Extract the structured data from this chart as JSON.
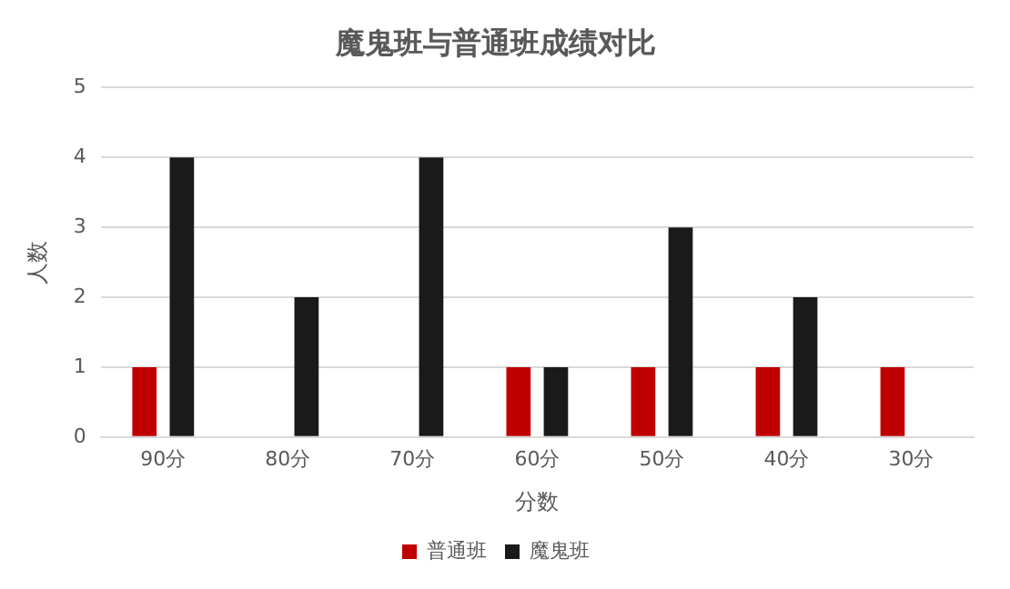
{
  "chart_data": {
    "type": "bar",
    "title": "魔鬼班与普通班成绩对比",
    "xlabel": "分数",
    "ylabel": "人数",
    "categories": [
      "90分",
      "80分",
      "70分",
      "60分",
      "50分",
      "40分",
      "30分"
    ],
    "series": [
      {
        "name": "普通班",
        "color": "#c00000",
        "values": [
          1,
          0,
          0,
          1,
          1,
          1,
          1
        ]
      },
      {
        "name": "魔鬼班",
        "color": "#1a1a1a",
        "values": [
          4,
          2,
          4,
          1,
          3,
          2,
          0
        ]
      }
    ],
    "ylim": [
      0,
      5
    ],
    "yticks": [
      0,
      1,
      2,
      3,
      4,
      5
    ],
    "grid": "y",
    "legend": "bottom"
  }
}
